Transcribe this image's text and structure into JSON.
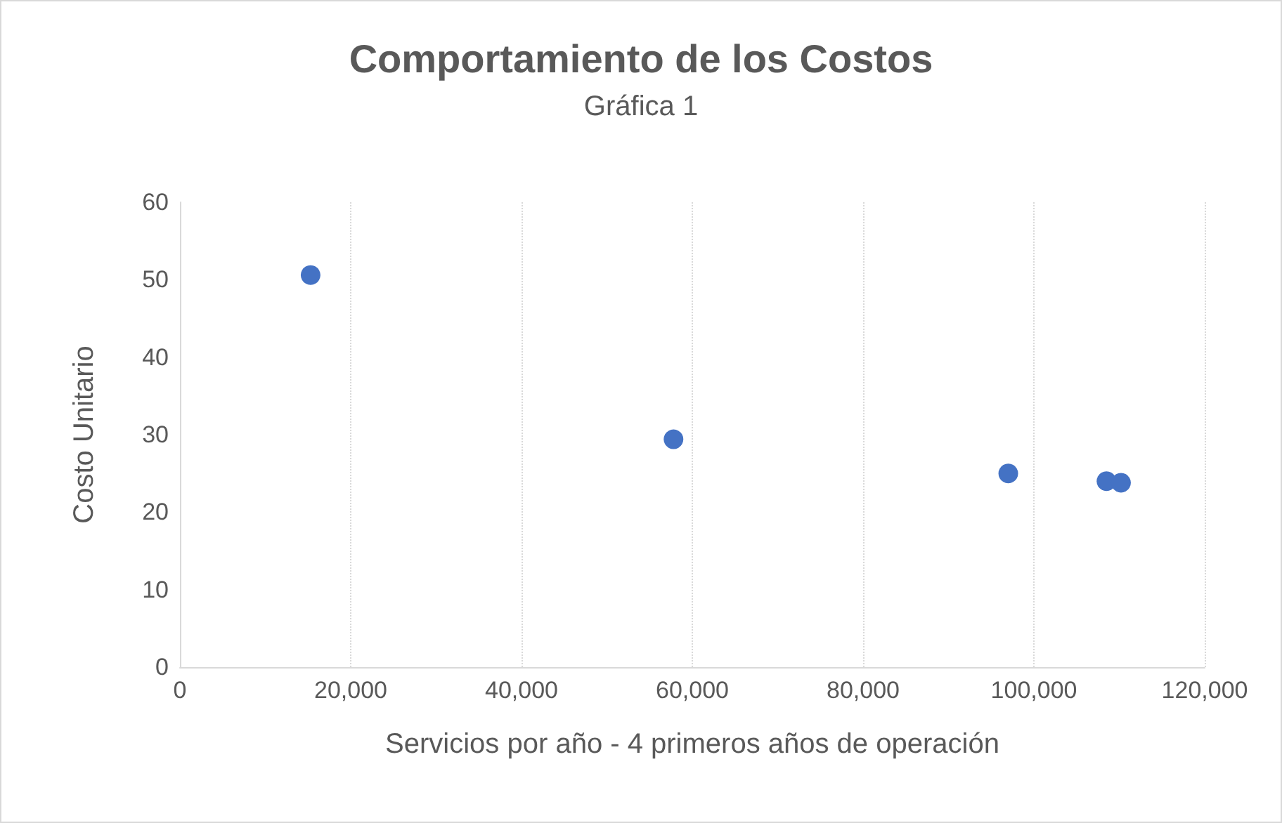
{
  "chart_data": {
    "type": "scatter",
    "title": "Comportamiento de los Costos",
    "subtitle": "Gráfica 1",
    "xlabel": "Servicios por año - 4 primeros años de operación",
    "ylabel": "Costo Unitario",
    "x": [
      15300,
      57800,
      97000,
      108500,
      110200
    ],
    "series": [
      {
        "color": "#4472c4",
        "values": [
          50.6,
          29.4,
          25.0,
          24.0,
          23.8
        ]
      }
    ],
    "xlim": [
      0,
      120000
    ],
    "xticks": [
      {
        "value": 0,
        "label": "0"
      },
      {
        "value": 20000,
        "label": "20,000"
      },
      {
        "value": 40000,
        "label": "40,000"
      },
      {
        "value": 60000,
        "label": "60,000"
      },
      {
        "value": 80000,
        "label": "80,000"
      },
      {
        "value": 100000,
        "label": "100,000"
      },
      {
        "value": 120000,
        "label": "120,000"
      }
    ],
    "ylim": [
      0,
      60
    ],
    "yticks": [
      0,
      10,
      20,
      30,
      40,
      50,
      60
    ],
    "grid": "x",
    "marker": "circle"
  }
}
